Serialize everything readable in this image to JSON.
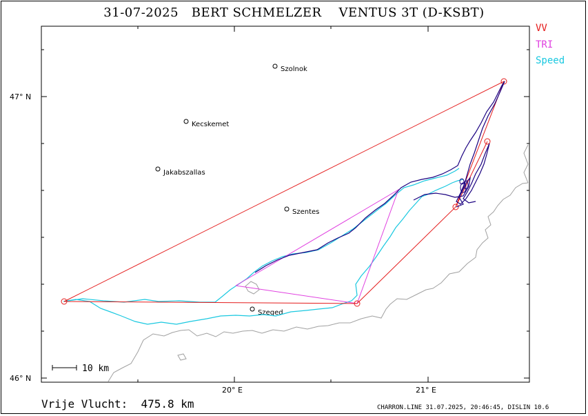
{
  "header": {
    "date": "31-07-2025",
    "pilot": "BERT SCHMELZER",
    "glider": "VENTUS 3T (D-KSBT)"
  },
  "legend": {
    "items": [
      {
        "label": "VV",
        "color": "#e41a1a"
      },
      {
        "label": "TRI",
        "color": "#e040e0"
      },
      {
        "label": "Speed",
        "color": "#19c8e0"
      }
    ]
  },
  "axes": {
    "lat_labels": [
      "47° N",
      "46° N"
    ],
    "lon_labels": [
      "20° E",
      "21° E"
    ]
  },
  "towns": [
    {
      "name": "Szolnok"
    },
    {
      "name": "Kecskemet"
    },
    {
      "name": "Jakabszallas"
    },
    {
      "name": "Szentes"
    },
    {
      "name": "Szeged"
    }
  ],
  "scale_bar": {
    "label": "10  km"
  },
  "footer": {
    "result_label": "Vrije Vlucht:",
    "result_value": "475.8 km",
    "credit": "CHARRON.LINE 31.07.2025, 20:46:45, DISLIN 10.6"
  },
  "colors": {
    "track": "#1a0080",
    "border": "#a0a0a0"
  }
}
